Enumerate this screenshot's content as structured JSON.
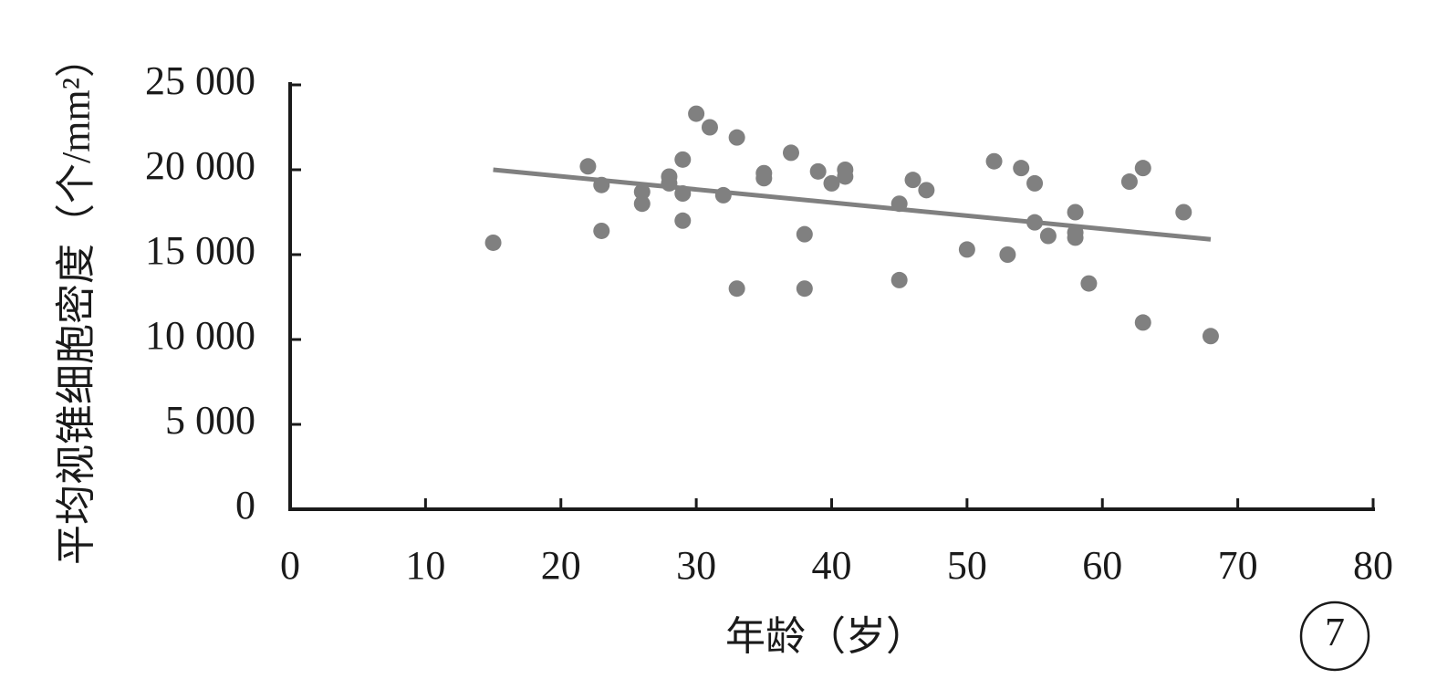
{
  "chart_data": {
    "type": "scatter",
    "x_label": "年龄（岁）",
    "y_label": "平均视锥细胞密度（个/mm²）",
    "badge": "7",
    "color": "#808080",
    "x": [
      15,
      22,
      23,
      23,
      26,
      26,
      28,
      28,
      29,
      29,
      29,
      30,
      31,
      32,
      33,
      33,
      35,
      35,
      37,
      38,
      38,
      39,
      40,
      41,
      41,
      45,
      45,
      46,
      47,
      50,
      52,
      53,
      54,
      55,
      55,
      56,
      58,
      58,
      58,
      59,
      62,
      63,
      63,
      66,
      68
    ],
    "values": [
      15700,
      20200,
      19100,
      16400,
      18700,
      18000,
      19600,
      19200,
      20600,
      18600,
      17000,
      23300,
      22500,
      18500,
      21900,
      13000,
      19800,
      19500,
      21000,
      16200,
      13000,
      19900,
      19200,
      20000,
      19600,
      18000,
      13500,
      19400,
      18800,
      15300,
      20500,
      15000,
      20100,
      19200,
      16900,
      16100,
      17500,
      16300,
      16000,
      13300,
      19300,
      20100,
      11000,
      17500,
      10200
    ],
    "trendline": {
      "x": [
        15,
        68
      ],
      "values": [
        20000,
        15900
      ],
      "color": "#808080"
    },
    "xlim": [
      0,
      80
    ],
    "xticks": [
      0,
      10,
      20,
      30,
      40,
      50,
      60,
      70,
      80
    ],
    "ylim": [
      0,
      25000
    ],
    "yticks": [
      0,
      {
        "value": 5000,
        "label": "5 000"
      },
      {
        "value": 10000,
        "label": "10 000"
      },
      {
        "value": 15000,
        "label": "15 000"
      },
      {
        "value": 20000,
        "label": "20 000"
      },
      {
        "value": 25000,
        "label": "25 000"
      }
    ]
  }
}
